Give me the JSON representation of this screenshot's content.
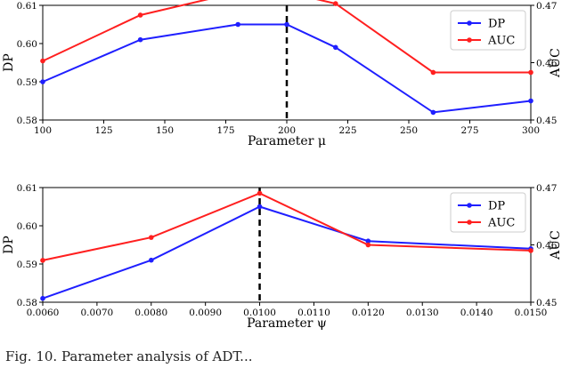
{
  "chart_data": [
    {
      "type": "line",
      "xlabel": "Parameter μ",
      "ylabel_left": "DP",
      "ylabel_right": "AUC",
      "xlim": [
        100,
        300
      ],
      "ylim_left": [
        0.58,
        0.61
      ],
      "ylim_right": [
        0.45,
        0.47
      ],
      "xticks": [
        100,
        125,
        150,
        175,
        200,
        225,
        250,
        275,
        300
      ],
      "yticks_left": [
        0.58,
        0.59,
        0.6,
        0.61
      ],
      "yticks_right": [
        0.45,
        0.46,
        0.47
      ],
      "x": [
        100,
        140,
        180,
        200,
        220,
        260,
        300
      ],
      "series": [
        {
          "name": "DP",
          "axis": "left",
          "color": "#1f1fff",
          "values": [
            0.59,
            0.601,
            0.605,
            0.605,
            0.599,
            0.582,
            0.585
          ]
        },
        {
          "name": "AUC",
          "axis": "right",
          "color": "#ff1f1f",
          "values": [
            0.4603,
            0.4683,
            0.4723,
            0.4723,
            0.4703,
            0.4583,
            0.4583
          ]
        }
      ],
      "vline_x": 200,
      "legend": "top-right",
      "grid": false
    },
    {
      "type": "line",
      "xlabel": "Parameter ψ",
      "ylabel_left": "DP",
      "ylabel_right": "AUC",
      "xlim": [
        0.006,
        0.015
      ],
      "ylim_left": [
        0.58,
        0.61
      ],
      "ylim_right": [
        0.45,
        0.47
      ],
      "xticks": [
        0.006,
        0.007,
        0.008,
        0.009,
        0.01,
        0.011,
        0.012,
        0.013,
        0.014,
        0.015
      ],
      "yticks_left": [
        0.58,
        0.59,
        0.6,
        0.61
      ],
      "yticks_right": [
        0.45,
        0.46,
        0.47
      ],
      "x": [
        0.006,
        0.008,
        0.01,
        0.012,
        0.015
      ],
      "series": [
        {
          "name": "DP",
          "axis": "left",
          "color": "#1f1fff",
          "values": [
            0.581,
            0.591,
            0.605,
            0.596,
            0.594
          ]
        },
        {
          "name": "AUC",
          "axis": "right",
          "color": "#ff1f1f",
          "values": [
            0.4573,
            0.4613,
            0.469,
            0.46,
            0.459
          ]
        }
      ],
      "vline_x": 0.01,
      "legend": "top-right",
      "grid": false
    }
  ],
  "caption": "Fig. 10.    Parameter analysis of ADT..."
}
